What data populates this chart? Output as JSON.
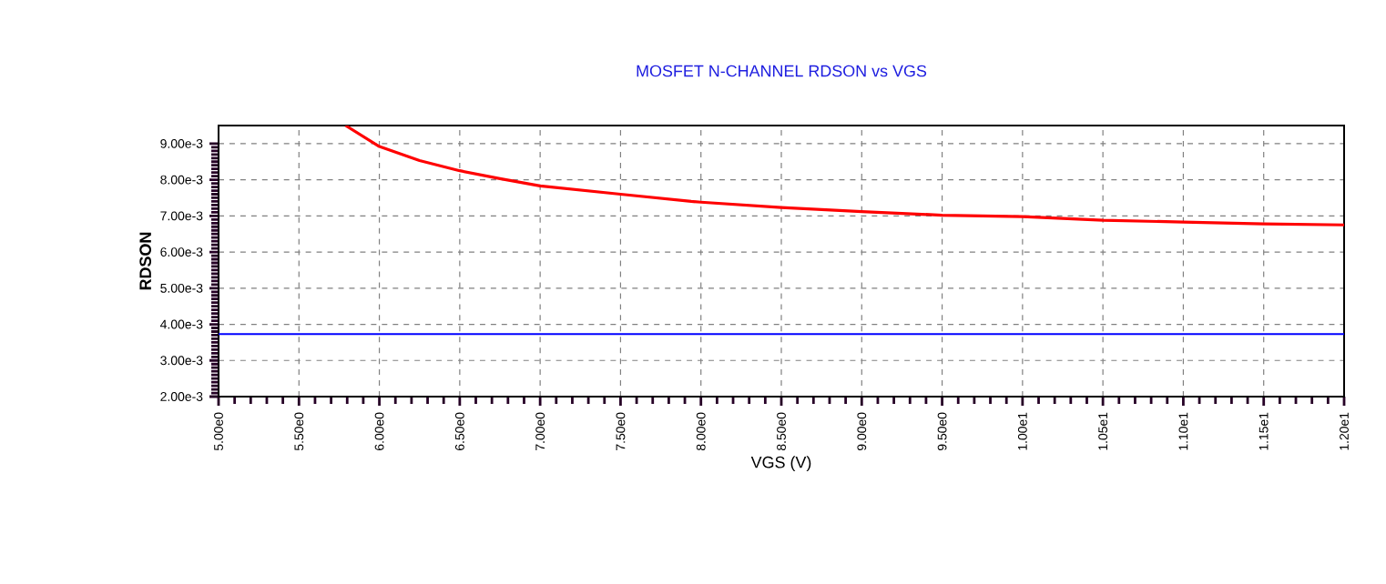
{
  "chart_data": {
    "type": "line",
    "title": "MOSFET N-CHANNEL RDSON vs VGS",
    "xlabel": "VGS (V)",
    "ylabel": "RDSON",
    "x": [
      5.79,
      6.0,
      6.25,
      6.5,
      6.75,
      7.0,
      7.5,
      7.94,
      8.0,
      8.5,
      9.0,
      9.5,
      10.0,
      10.5,
      11.0,
      11.5,
      12.0
    ],
    "series": [
      {
        "color": "#ff0000",
        "values": [
          0.0095,
          0.00892,
          0.00853,
          0.00825,
          0.00803,
          0.00783,
          0.0076,
          0.0074,
          0.00738,
          0.00723,
          0.00712,
          0.00702,
          0.00698,
          0.00688,
          0.00683,
          0.00678,
          0.00675
        ]
      }
    ],
    "ref_lines": [
      {
        "axis": "y",
        "value": 0.00373,
        "color": "#0000ff"
      }
    ],
    "xlim": [
      5,
      12
    ],
    "ylim": [
      0.002,
      0.0095
    ],
    "xticks": [
      {
        "value": 5,
        "label": "5.00e0"
      },
      {
        "value": 5.5,
        "label": "5.50e0"
      },
      {
        "value": 6,
        "label": "6.00e0"
      },
      {
        "value": 6.5,
        "label": "6.50e0"
      },
      {
        "value": 7,
        "label": "7.00e0"
      },
      {
        "value": 7.5,
        "label": "7.50e0"
      },
      {
        "value": 8,
        "label": "8.00e0"
      },
      {
        "value": 8.5,
        "label": "8.50e0"
      },
      {
        "value": 9,
        "label": "9.00e0"
      },
      {
        "value": 9.5,
        "label": "9.50e0"
      },
      {
        "value": 10,
        "label": "1.00e1"
      },
      {
        "value": 10.5,
        "label": "1.05e1"
      },
      {
        "value": 11,
        "label": "1.10e1"
      },
      {
        "value": 11.5,
        "label": "1.15e1"
      },
      {
        "value": 12,
        "label": "1.20e1"
      }
    ],
    "yticks": [
      {
        "value": 0.002,
        "label": "2.00e-3"
      },
      {
        "value": 0.003,
        "label": "3.00e-3"
      },
      {
        "value": 0.004,
        "label": "4.00e-3"
      },
      {
        "value": 0.005,
        "label": "5.00e-3"
      },
      {
        "value": 0.006,
        "label": "6.00e-3"
      },
      {
        "value": 0.007,
        "label": "7.00e-3"
      },
      {
        "value": 0.008,
        "label": "8.00e-3"
      },
      {
        "value": 0.009,
        "label": "9.00e-3"
      }
    ],
    "grid": true
  }
}
